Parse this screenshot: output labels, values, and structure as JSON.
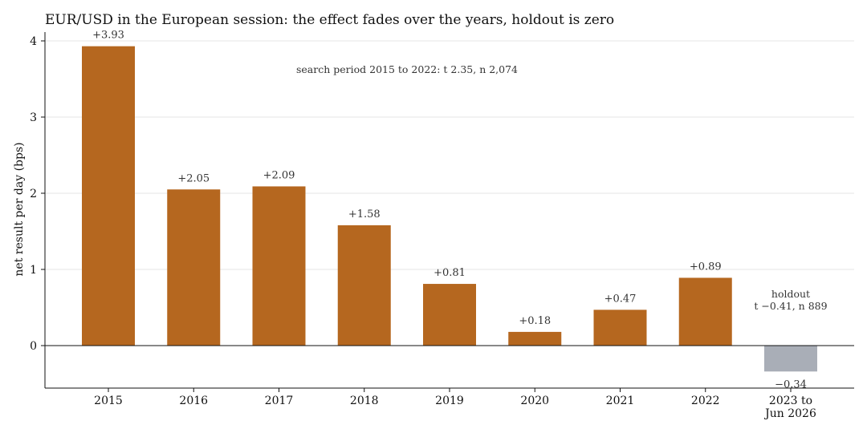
{
  "chart_data": {
    "type": "bar",
    "title": "EUR/USD in the European session: the effect fades over the years, holdout is zero",
    "xlabel": "",
    "ylabel": "net result per day (bps)",
    "ylim": [
      -0.55,
      4.12
    ],
    "yticks": [
      0,
      1,
      2,
      3,
      4
    ],
    "grid": true,
    "categories": [
      "2015",
      "2016",
      "2017",
      "2018",
      "2019",
      "2020",
      "2021",
      "2022",
      "2023 to\nJun 2026"
    ],
    "values": [
      3.93,
      2.05,
      2.09,
      1.58,
      0.81,
      0.18,
      0.47,
      0.89,
      -0.34
    ],
    "value_labels": [
      "+3.93",
      "+2.05",
      "+2.09",
      "+1.58",
      "+0.81",
      "+0.18",
      "+0.47",
      "+0.89",
      "−0.34"
    ],
    "bar_groups": [
      "search",
      "search",
      "search",
      "search",
      "search",
      "search",
      "search",
      "search",
      "holdout"
    ],
    "colors": {
      "search": "#b5671f",
      "holdout": "#a9aeb7"
    },
    "annotations": {
      "search": "search period 2015 to 2022: t 2.35, n 2,074",
      "holdout_line1": "holdout",
      "holdout_line2": "t −0.41, n 889"
    }
  }
}
